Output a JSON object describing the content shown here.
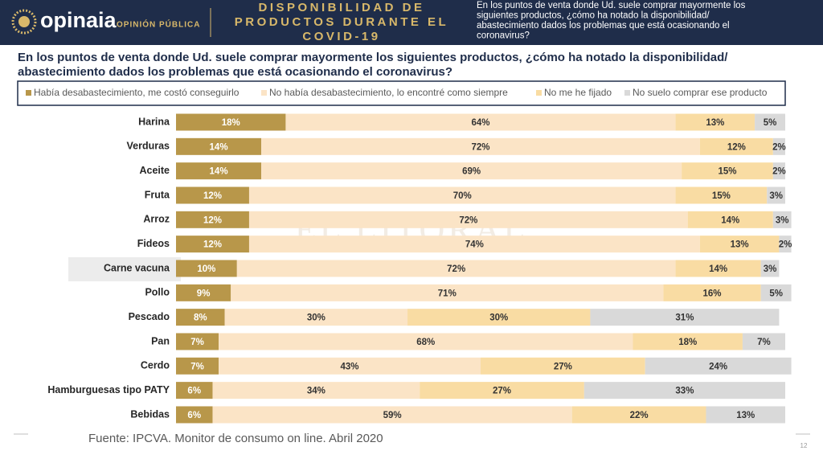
{
  "header": {
    "brand": "opinaia",
    "brand_sub": "OPINIÓN PÚBLICA",
    "title_lines": [
      "DISPONIBILIDAD DE",
      "PRODUCTOS DURANTE EL",
      "COVID-19"
    ],
    "note_lines": [
      "En los puntos de venta donde Ud. suele comprar mayormente los",
      "siguientes productos, ¿cómo ha notado la disponibilidad/",
      "abastecimiento dados los problemas que está ocasionando el",
      "coronavirus?"
    ]
  },
  "chart_data": {
    "type": "stacked_barh",
    "title_lines": [
      "En los puntos de venta donde Ud. suele comprar mayormente los siguientes productos, ¿cómo ha notado la disponibilidad/",
      "abastecimiento dados los problemas que está ocasionando el coronavirus?"
    ],
    "categories": [
      "Harina",
      "Verduras",
      "Aceite",
      "Fruta",
      "Arroz",
      "Fideos",
      "Carne vacuna",
      "Pollo",
      "Pescado",
      "Pan",
      "Cerdo",
      "Hamburguesas  tipo PATY",
      "Bebidas"
    ],
    "xlim": [
      0,
      100
    ],
    "series": [
      {
        "name": "Había desabastecimiento, me costó conseguirlo",
        "color": "#b8974a",
        "values": [
          18,
          14,
          14,
          12,
          12,
          12,
          10,
          9,
          8,
          7,
          7,
          6,
          6
        ],
        "value_labels": [
          "18%",
          "14%",
          "14%",
          "12%",
          "12%",
          "12%",
          "10%",
          "9%",
          "8%",
          "7%",
          "7%",
          "6%",
          "6%"
        ]
      },
      {
        "name": "No había desabastecimiento, lo encontré como siempre",
        "color": "#fbe4c6",
        "values": [
          64,
          72,
          69,
          70,
          72,
          74,
          72,
          71,
          30,
          68,
          43,
          34,
          59
        ],
        "value_labels": [
          "64%",
          "72%",
          "69%",
          "70%",
          "72%",
          "74%",
          "72%",
          "71%",
          "30%",
          "68%",
          "43%",
          "34%",
          "59%"
        ]
      },
      {
        "name": "No me he fijado",
        "color": "#f9dca3",
        "values": [
          13,
          12,
          15,
          15,
          14,
          13,
          14,
          16,
          30,
          18,
          27,
          27,
          22
        ],
        "value_labels": [
          "13%",
          "12%",
          "15%",
          "15%",
          "14%",
          "13%",
          "14%",
          "16%",
          "30%",
          "18%",
          "27%",
          "27%",
          "22%"
        ]
      },
      {
        "name": "No suelo comprar ese producto",
        "color": "#d9d9d9",
        "values": [
          5,
          2,
          2,
          3,
          3,
          2,
          3,
          5,
          31,
          7,
          24,
          33,
          13
        ],
        "value_labels": [
          "5%",
          "2%",
          "2%",
          "3%",
          "3%",
          "2%",
          "3%",
          "5%",
          "31%",
          "7%",
          "24%",
          "33%",
          "13%"
        ]
      }
    ],
    "legend": "top"
  },
  "watermark": "EL LITORAL",
  "footer": {
    "source": "Fuente: IPCVA. Monitor de consumo on line. Abril 2020",
    "page": "12"
  }
}
